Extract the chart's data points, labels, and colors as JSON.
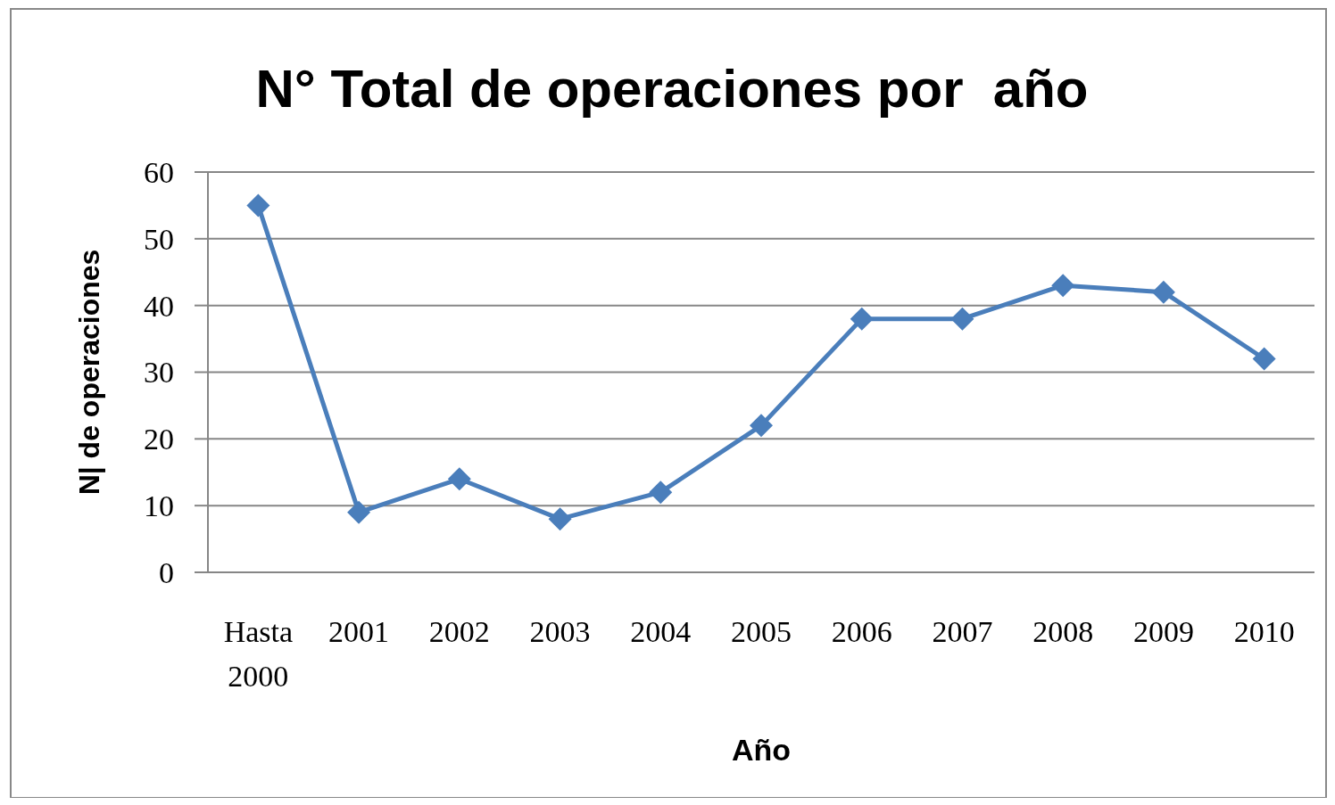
{
  "chart_data": {
    "type": "line",
    "title": "N° Total de operaciones por  año",
    "xlabel": "Año",
    "ylabel": "N| de operaciones",
    "categories": [
      "Hasta 2000",
      "2001",
      "2002",
      "2003",
      "2004",
      "2005",
      "2006",
      "2007",
      "2008",
      "2009",
      "2010"
    ],
    "series": [
      {
        "color": "#4a7ebb",
        "values": [
          55,
          9,
          14,
          8,
          12,
          22,
          38,
          38,
          43,
          42,
          32
        ]
      }
    ],
    "ylim": [
      0,
      60
    ],
    "yticks": [
      0,
      10,
      20,
      30,
      40,
      50,
      60
    ],
    "grid": "y",
    "marker": "diamond",
    "line_style": "solid"
  }
}
